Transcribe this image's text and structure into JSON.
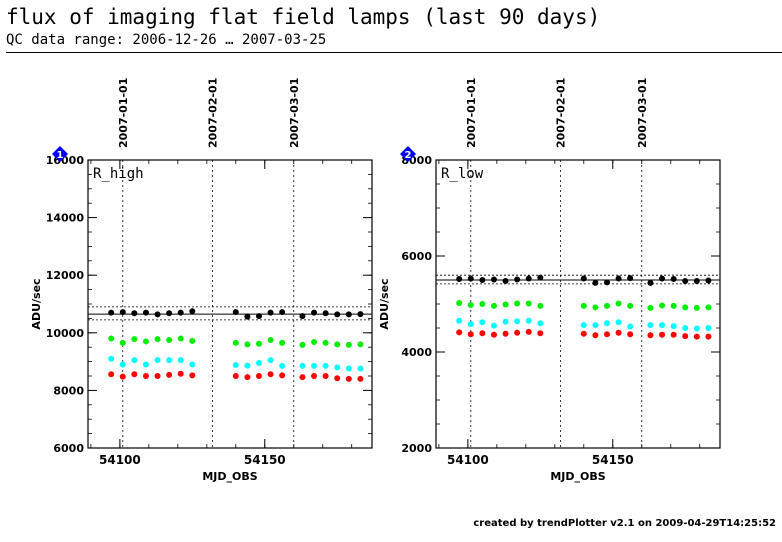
{
  "header": {
    "title": "flux of imaging flat field lamps (last 90 days)",
    "subtitle": "QC data range: 2006-12-26 … 2007-03-25"
  },
  "footer": "created by trendPlotter v2.1 on 2009-04-29T14:25:52",
  "colors": {
    "series": [
      "#000000",
      "#00ee00",
      "#00ffff",
      "#ff0000"
    ],
    "badge": "#0000ff",
    "axis": "#000000"
  },
  "chart_data": [
    {
      "type": "scatter",
      "badge": "1",
      "panel_label": "R_high",
      "xlabel": "MJD_OBS",
      "ylabel": "ADU/sec",
      "xlim": [
        54089,
        54187
      ],
      "ylim": [
        6000,
        16000
      ],
      "xticks": [
        54100,
        54150
      ],
      "yticks": [
        6000,
        8000,
        10000,
        12000,
        14000,
        16000
      ],
      "date_markers": [
        {
          "x": 54101,
          "label": "2007-01-01"
        },
        {
          "x": 54132,
          "label": "2007-02-01"
        },
        {
          "x": 54160,
          "label": "2007-03-01"
        }
      ],
      "reference": {
        "mean": 10650,
        "upper": 10900,
        "lower": 10450
      },
      "x": [
        54097,
        54101,
        54105,
        54109,
        54113,
        54117,
        54121,
        54125,
        54140,
        54144,
        54148,
        54152,
        54156,
        54163,
        54167,
        54171,
        54175,
        54179,
        54183
      ],
      "series": [
        {
          "values": [
            10700,
            10720,
            10680,
            10700,
            10640,
            10680,
            10700,
            10750,
            10720,
            10560,
            10580,
            10700,
            10720,
            10580,
            10700,
            10680,
            10640,
            10640,
            10650
          ]
        },
        {
          "values": [
            9800,
            9650,
            9780,
            9700,
            9780,
            9750,
            9800,
            9720,
            9650,
            9600,
            9620,
            9750,
            9650,
            9580,
            9680,
            9650,
            9600,
            9580,
            9600
          ]
        },
        {
          "values": [
            9100,
            8900,
            9050,
            8900,
            9050,
            9050,
            9050,
            8900,
            8880,
            8860,
            8950,
            9050,
            8850,
            8850,
            8850,
            8850,
            8800,
            8760,
            8760
          ]
        },
        {
          "values": [
            8560,
            8480,
            8560,
            8500,
            8500,
            8540,
            8580,
            8520,
            8500,
            8460,
            8500,
            8560,
            8520,
            8460,
            8500,
            8500,
            8420,
            8400,
            8400
          ]
        }
      ]
    },
    {
      "type": "scatter",
      "badge": "2",
      "panel_label": "R_low",
      "xlabel": "MJD_OBS",
      "ylabel": "ADU/sec",
      "xlim": [
        54089,
        54187
      ],
      "ylim": [
        2000,
        8000
      ],
      "xticks": [
        54100,
        54150
      ],
      "yticks": [
        2000,
        4000,
        6000,
        8000
      ],
      "date_markers": [
        {
          "x": 54101,
          "label": "2007-01-01"
        },
        {
          "x": 54132,
          "label": "2007-02-01"
        },
        {
          "x": 54160,
          "label": "2007-03-01"
        }
      ],
      "reference": {
        "mean": 5500,
        "upper": 5600,
        "lower": 5420
      },
      "x": [
        54097,
        54101,
        54105,
        54109,
        54113,
        54117,
        54121,
        54125,
        54140,
        54144,
        54148,
        54152,
        54156,
        54163,
        54167,
        54171,
        54175,
        54179,
        54183
      ],
      "series": [
        {
          "values": [
            5520,
            5530,
            5500,
            5510,
            5480,
            5510,
            5530,
            5550,
            5530,
            5440,
            5450,
            5530,
            5540,
            5440,
            5530,
            5520,
            5480,
            5480,
            5490
          ]
        },
        {
          "values": [
            5020,
            4980,
            5000,
            4960,
            4990,
            5010,
            5010,
            4960,
            4960,
            4930,
            4960,
            5010,
            4960,
            4920,
            4970,
            4960,
            4930,
            4920,
            4930
          ]
        },
        {
          "values": [
            4650,
            4580,
            4620,
            4550,
            4630,
            4640,
            4650,
            4600,
            4560,
            4560,
            4600,
            4620,
            4530,
            4560,
            4560,
            4540,
            4500,
            4490,
            4500
          ]
        },
        {
          "values": [
            4410,
            4370,
            4390,
            4360,
            4380,
            4400,
            4420,
            4390,
            4380,
            4350,
            4370,
            4400,
            4370,
            4350,
            4360,
            4360,
            4330,
            4320,
            4320
          ]
        }
      ]
    }
  ]
}
